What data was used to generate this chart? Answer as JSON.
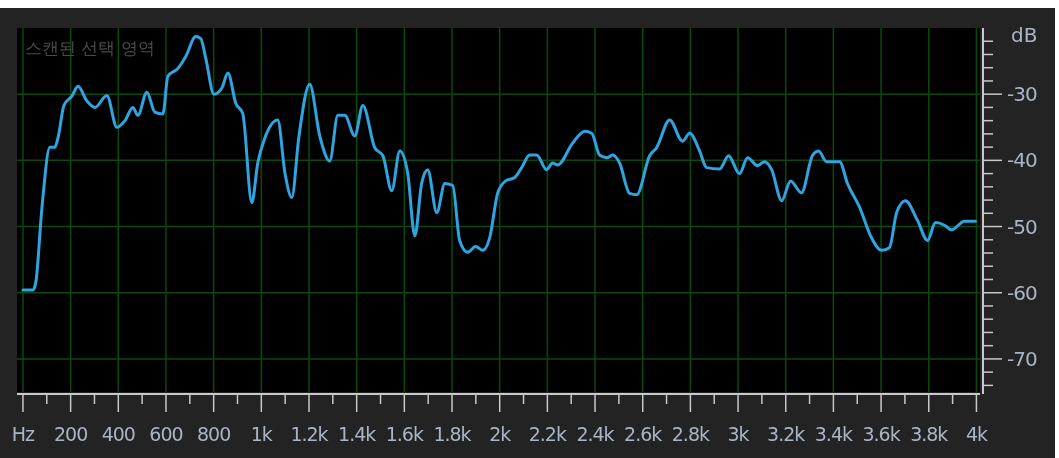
{
  "chart_data": {
    "type": "line",
    "title": "스캔된 선택 영역",
    "ylabel": "dB",
    "xlim": [
      -25,
      4015
    ],
    "ylim": [
      -75,
      -20
    ],
    "xticks": [
      {
        "value": 0,
        "label": "Hz"
      },
      {
        "value": 100,
        "label": null
      },
      {
        "value": 200,
        "label": "200"
      },
      {
        "value": 300,
        "label": null
      },
      {
        "value": 400,
        "label": "400"
      },
      {
        "value": 500,
        "label": null
      },
      {
        "value": 600,
        "label": "600"
      },
      {
        "value": 700,
        "label": null
      },
      {
        "value": 800,
        "label": "800"
      },
      {
        "value": 900,
        "label": null
      },
      {
        "value": 1000,
        "label": "1k"
      },
      {
        "value": 1100,
        "label": null
      },
      {
        "value": 1200,
        "label": "1.2k"
      },
      {
        "value": 1300,
        "label": null
      },
      {
        "value": 1400,
        "label": "1.4k"
      },
      {
        "value": 1500,
        "label": null
      },
      {
        "value": 1600,
        "label": "1.6k"
      },
      {
        "value": 1700,
        "label": null
      },
      {
        "value": 1800,
        "label": "1.8k"
      },
      {
        "value": 1900,
        "label": null
      },
      {
        "value": 2000,
        "label": "2k"
      },
      {
        "value": 2100,
        "label": null
      },
      {
        "value": 2200,
        "label": "2.2k"
      },
      {
        "value": 2300,
        "label": null
      },
      {
        "value": 2400,
        "label": "2.4k"
      },
      {
        "value": 2500,
        "label": null
      },
      {
        "value": 2600,
        "label": "2.6k"
      },
      {
        "value": 2700,
        "label": null
      },
      {
        "value": 2800,
        "label": "2.8k"
      },
      {
        "value": 2900,
        "label": null
      },
      {
        "value": 3000,
        "label": "3k"
      },
      {
        "value": 3100,
        "label": null
      },
      {
        "value": 3200,
        "label": "3.2k"
      },
      {
        "value": 3300,
        "label": null
      },
      {
        "value": 3400,
        "label": "3.4k"
      },
      {
        "value": 3500,
        "label": null
      },
      {
        "value": 3600,
        "label": "3.6k"
      },
      {
        "value": 3700,
        "label": null
      },
      {
        "value": 3800,
        "label": "3.8k"
      },
      {
        "value": 3900,
        "label": null
      },
      {
        "value": 4000,
        "label": "4k"
      }
    ],
    "yticks": [
      {
        "value": -22,
        "label": null
      },
      {
        "value": -24,
        "label": null
      },
      {
        "value": -26,
        "label": null
      },
      {
        "value": -28,
        "label": null
      },
      -30,
      {
        "value": -32,
        "label": null
      },
      {
        "value": -34,
        "label": null
      },
      {
        "value": -36,
        "label": null
      },
      {
        "value": -38,
        "label": null
      },
      -40,
      {
        "value": -42,
        "label": null
      },
      {
        "value": -44,
        "label": null
      },
      {
        "value": -46,
        "label": null
      },
      {
        "value": -48,
        "label": null
      },
      -50,
      {
        "value": -52,
        "label": null
      },
      {
        "value": -54,
        "label": null
      },
      {
        "value": -56,
        "label": null
      },
      {
        "value": -58,
        "label": null
      },
      -60,
      {
        "value": -62,
        "label": null
      },
      {
        "value": -64,
        "label": null
      },
      {
        "value": -66,
        "label": null
      },
      {
        "value": -68,
        "label": null
      },
      -70,
      {
        "value": -72,
        "label": null
      },
      {
        "value": -74,
        "label": null
      }
    ],
    "grid": true,
    "line_style": "solid",
    "marker": "none",
    "series": [
      {
        "color": "#2ea4e0",
        "x": [
          0,
          42,
          54,
          80,
          113,
          134,
          147,
          172,
          205,
          231,
          268,
          302,
          352,
          394,
          428,
          461,
          482,
          520,
          553,
          587,
          608,
          650,
          683,
          725,
          746,
          767,
          801,
          834,
          860,
          893,
          922,
          960,
          985,
          1015,
          1069,
          1099,
          1128,
          1157,
          1203,
          1245,
          1287,
          1321,
          1350,
          1392,
          1426,
          1476,
          1510,
          1547,
          1581,
          1614,
          1644,
          1673,
          1698,
          1736,
          1770,
          1803,
          1832,
          1866,
          1899,
          1929,
          1958,
          1992,
          2025,
          2063,
          2092,
          2126,
          2155,
          2197,
          2222,
          2243,
          2306,
          2357,
          2386,
          2419,
          2449,
          2474,
          2503,
          2545,
          2575,
          2629,
          2658,
          2713,
          2767,
          2797,
          2839,
          2868,
          2923,
          2960,
          3006,
          3040,
          3082,
          3111,
          3141,
          3183,
          3220,
          3266,
          3313,
          3338,
          3371,
          3426,
          3459,
          3510,
          3560,
          3602,
          3635,
          3665,
          3702,
          3753,
          3795,
          3828,
          3866,
          3895,
          3950,
          3996
        ],
        "values": [
          -59.6,
          -59.6,
          -58.4,
          -47,
          -38,
          -38,
          -36.6,
          -31.7,
          -30.3,
          -28.8,
          -31,
          -32,
          -30.2,
          -35,
          -34,
          -32,
          -33.2,
          -29.7,
          -32.7,
          -33,
          -27.3,
          -26.1,
          -24.3,
          -21.3,
          -21.6,
          -24.6,
          -30,
          -29.1,
          -26.8,
          -31.4,
          -32.9,
          -46.4,
          -40.4,
          -36.6,
          -33.9,
          -41.9,
          -45.6,
          -36.6,
          -28.5,
          -36.3,
          -40.1,
          -33.2,
          -33.2,
          -36.3,
          -31.7,
          -38.1,
          -39.3,
          -44.6,
          -38.6,
          -41.9,
          -51.4,
          -43.4,
          -41.4,
          -47.9,
          -43.5,
          -43.8,
          -52.1,
          -53.9,
          -53,
          -53.6,
          -51.7,
          -44.9,
          -43.1,
          -42.6,
          -41.1,
          -39.2,
          -39.2,
          -41.4,
          -40.4,
          -40.7,
          -37.4,
          -35.6,
          -35.9,
          -39.2,
          -39.6,
          -39.2,
          -40.4,
          -45,
          -45.2,
          -39.3,
          -38.1,
          -33.9,
          -37.1,
          -35.9,
          -38.6,
          -41.1,
          -41.3,
          -39.3,
          -42,
          -39.6,
          -40.8,
          -40.2,
          -41.4,
          -46.1,
          -43.1,
          -44.9,
          -39.2,
          -38.6,
          -40.2,
          -40.2,
          -43.5,
          -47.1,
          -51.7,
          -53.6,
          -53.2,
          -47.9,
          -46.1,
          -49.1,
          -52.1,
          -49.4,
          -49.8,
          -50.5,
          -49.2,
          -49.2
        ]
      }
    ]
  }
}
